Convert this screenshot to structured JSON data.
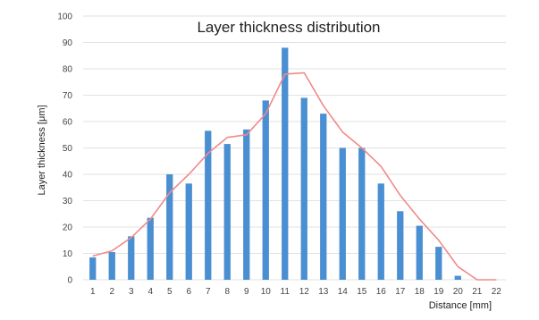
{
  "chart_data": {
    "type": "bar",
    "title": "Layer thickness distribution",
    "xlabel": "Distance [mm]",
    "ylabel": "Layer thickness [μm]",
    "categories": [
      "1",
      "2",
      "3",
      "4",
      "5",
      "6",
      "7",
      "8",
      "9",
      "10",
      "11",
      "12",
      "13",
      "14",
      "15",
      "16",
      "17",
      "18",
      "19",
      "20",
      "21",
      "22"
    ],
    "series": [
      {
        "values": [
          8.5,
          10.5,
          16.5,
          23.5,
          40,
          36.5,
          56.5,
          51.5,
          57,
          68,
          88,
          69,
          63,
          50,
          50,
          36.5,
          26,
          20.5,
          12.5,
          1.5,
          0,
          0
        ],
        "kind": "bar",
        "color": "#4a8fd2"
      },
      {
        "values": [
          9,
          11,
          16,
          23,
          33,
          40,
          48,
          54,
          55,
          63,
          78,
          78.5,
          66,
          56,
          50,
          43,
          32,
          23,
          15,
          5,
          0,
          0
        ],
        "kind": "line",
        "color": "#f08a8a"
      }
    ],
    "ylim": [
      0,
      100
    ],
    "yticks": [
      0,
      10,
      20,
      30,
      40,
      50,
      60,
      70,
      80,
      90,
      100
    ],
    "grid": true,
    "legend": "none"
  }
}
